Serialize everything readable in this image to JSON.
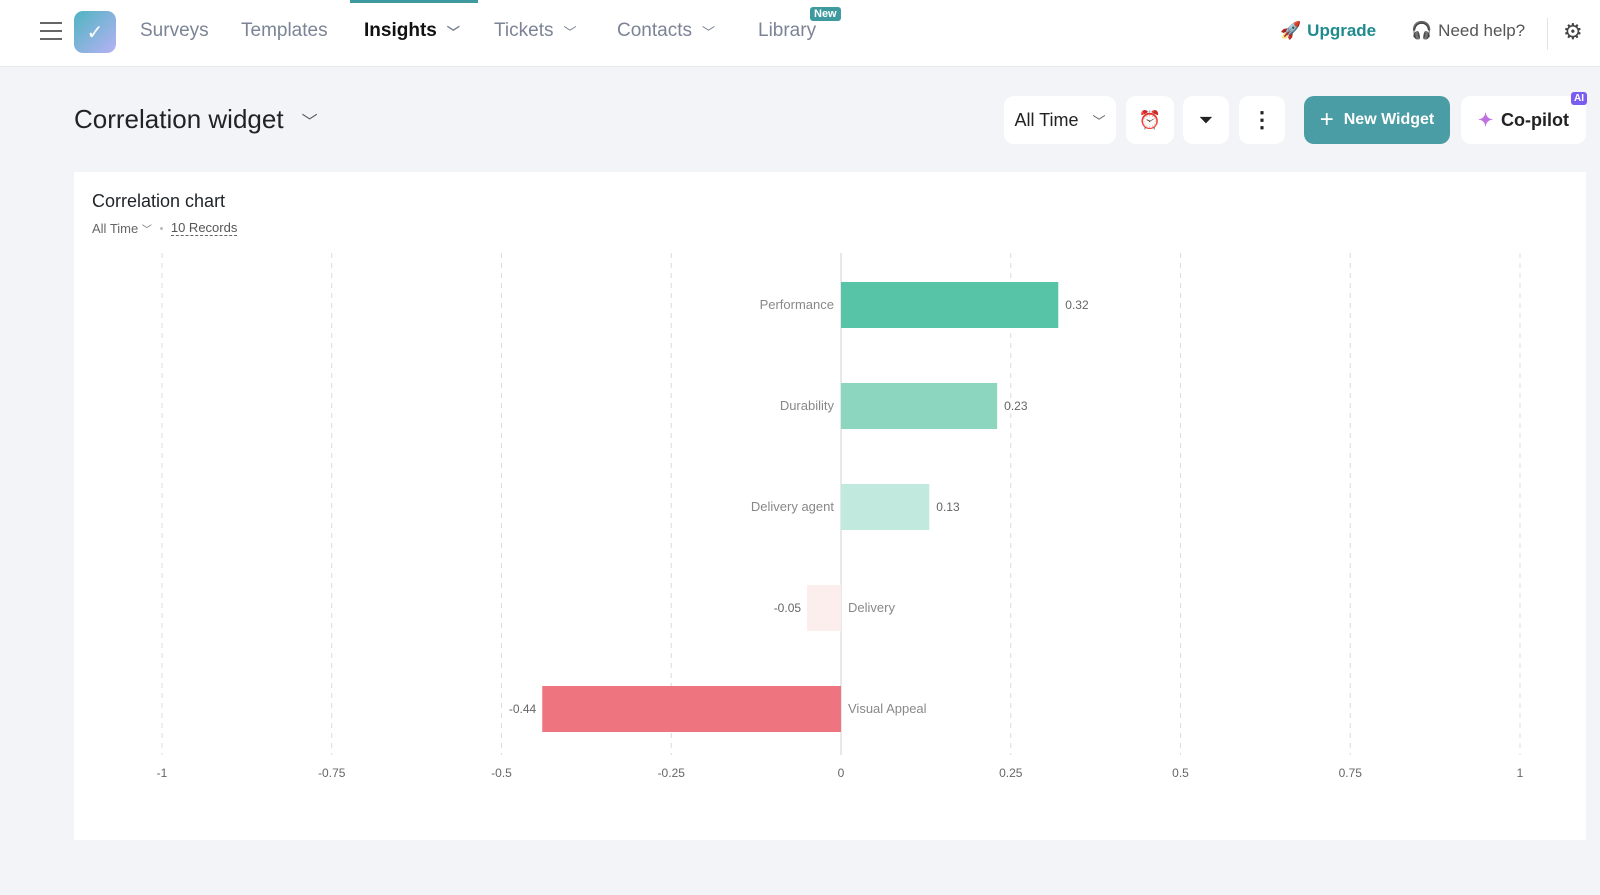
{
  "nav": {
    "items": [
      {
        "label": "Surveys"
      },
      {
        "label": "Templates"
      },
      {
        "label": "Insights",
        "active": true
      },
      {
        "label": "Tickets"
      },
      {
        "label": "Contacts"
      },
      {
        "label": "Library",
        "badge": "New"
      }
    ],
    "upgrade": "Upgrade",
    "help": "Need help?",
    "accent": "#3f9aa0"
  },
  "toolbar": {
    "title": "Correlation widget",
    "range": "All Time",
    "new_widget": "New Widget",
    "copilot": "Co-pilot",
    "ai_badge": "AI"
  },
  "card": {
    "title": "Correlation chart",
    "range": "All Time",
    "records": "10 Records"
  },
  "chart_data": {
    "type": "bar",
    "orientation": "horizontal",
    "categories": [
      "Performance",
      "Durability",
      "Delivery agent",
      "Delivery",
      "Visual Appeal"
    ],
    "values": [
      0.32,
      0.23,
      0.13,
      -0.05,
      -0.44
    ],
    "xlim": [
      -1,
      1
    ],
    "xticks": [
      "-1",
      "-0.75",
      "-0.5",
      "-0.25",
      "0",
      "0.25",
      "0.5",
      "0.75",
      "1"
    ],
    "grid": true,
    "colors": [
      "#57c4a8",
      "#8cd5bf",
      "#c2e9dd",
      "#fdeeee",
      "#ee747f"
    ]
  }
}
